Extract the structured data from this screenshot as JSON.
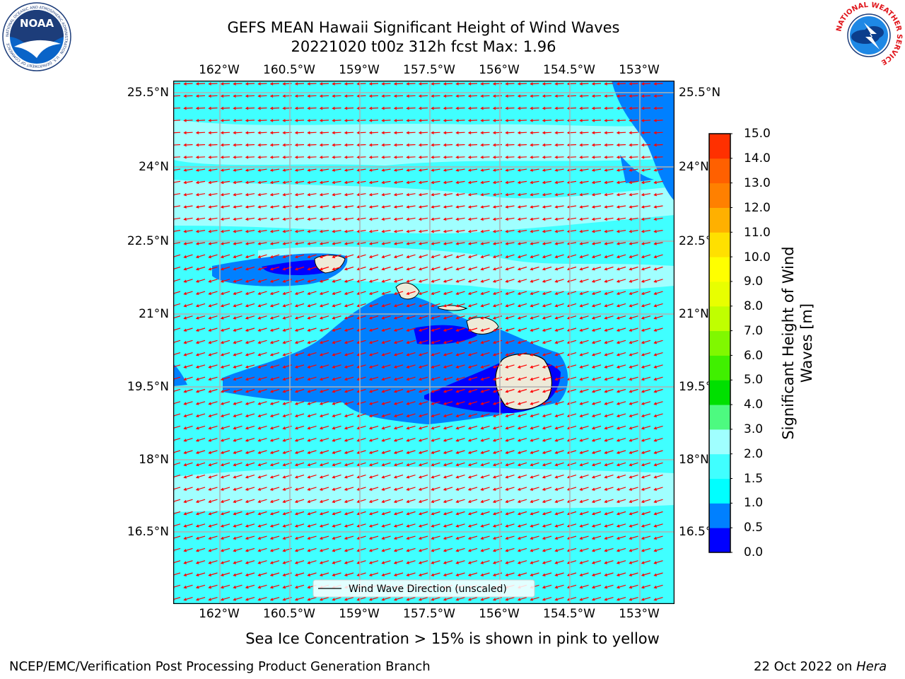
{
  "header": {
    "title_line1": "GEFS MEAN Hawaii Significant Height of Wind Waves",
    "title_line2": "20221020 t00z 312h fcst   Max: 1.96"
  },
  "logos": {
    "noaa": {
      "text": "NOAA",
      "ring": "NATIONAL OCEANIC AND ATMOSPHERIC ADMINISTRATION · U.S. DEPARTMENT OF COMMERCE"
    },
    "nws": {
      "ring": "NATIONAL WEATHER SERVICE"
    }
  },
  "map": {
    "lon_labels": [
      "162°W",
      "160.5°W",
      "159°W",
      "157.5°W",
      "156°W",
      "154.5°W",
      "153°W"
    ],
    "lat_labels": [
      "25.5°N",
      "24°N",
      "22.5°N",
      "21°N",
      "19.5°N",
      "18°N",
      "16.5°N"
    ],
    "legend_label": "Wind Wave Direction (unscaled)",
    "arrow_color": "#ff0000",
    "land_color": "#eeead8"
  },
  "colorbar": {
    "label_line1": "Significant Height of Wind",
    "label_line2": "Waves [m]",
    "ticks": [
      "15.0",
      "14.0",
      "13.0",
      "12.0",
      "11.0",
      "10.0",
      "9.0",
      "8.0",
      "7.0",
      "6.0",
      "5.0",
      "4.0",
      "3.0",
      "2.0",
      "1.5",
      "1.0",
      "0.5",
      "0.0"
    ],
    "colors": [
      "#0000ff",
      "#0080ff",
      "#00ffff",
      "#40ffff",
      "#a0ffff",
      "#4dfa80",
      "#00e000",
      "#40f000",
      "#80f800",
      "#c0ff00",
      "#e8ff00",
      "#ffff00",
      "#ffe000",
      "#ffb000",
      "#ff8000",
      "#ff6000",
      "#ff3000",
      "#ff0000"
    ]
  },
  "footer": {
    "ice_note": "Sea Ice Concentration > 15% is shown in pink to yellow",
    "branch": "NCEP/EMC/Verification Post Processing Product Generation Branch",
    "date": "22 Oct 2022 on ",
    "machine": "Hera"
  }
}
